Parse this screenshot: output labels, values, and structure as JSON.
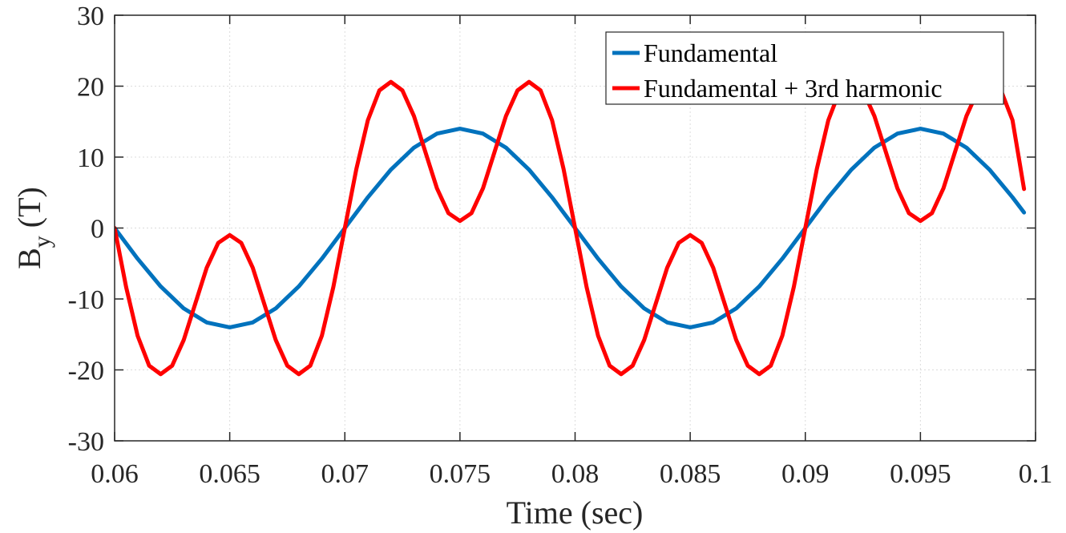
{
  "chart_data": {
    "type": "line",
    "xlabel": "Time (sec)",
    "ylabel": {
      "main": "B",
      "subscript": "y",
      "unit": "(T)"
    },
    "xlim": [
      0.06,
      0.1
    ],
    "ylim": [
      -30,
      30
    ],
    "xticks": [
      0.06,
      0.065,
      0.07,
      0.075,
      0.08,
      0.085,
      0.09,
      0.095,
      0.1
    ],
    "xtick_labels": [
      "0.06",
      "0.065",
      "0.07",
      "0.075",
      "0.08",
      "0.085",
      "0.09",
      "0.095",
      "0.1"
    ],
    "yticks": [
      -30,
      -20,
      -10,
      0,
      10,
      20,
      30
    ],
    "ytick_labels": [
      "-30",
      "-20",
      "-10",
      "0",
      "10",
      "20",
      "30"
    ],
    "grid": true,
    "legend_position": "top-right",
    "series": [
      {
        "name": "Fundamental",
        "color": "#0072BD",
        "x": [
          0.06,
          0.061,
          0.062,
          0.063,
          0.064,
          0.065,
          0.066,
          0.067,
          0.068,
          0.069,
          0.07,
          0.071,
          0.072,
          0.073,
          0.074,
          0.075,
          0.076,
          0.077,
          0.078,
          0.079,
          0.08,
          0.081,
          0.082,
          0.083,
          0.084,
          0.085,
          0.086,
          0.087,
          0.088,
          0.089,
          0.09,
          0.091,
          0.092,
          0.093,
          0.094,
          0.095,
          0.096,
          0.097,
          0.098,
          0.099,
          0.0995
        ],
        "y": [
          0,
          -4.33,
          -8.23,
          -11.33,
          -13.31,
          -14,
          -13.31,
          -11.33,
          -8.23,
          -4.33,
          0,
          4.33,
          8.23,
          11.33,
          13.31,
          14,
          13.31,
          11.33,
          8.23,
          4.33,
          0,
          -4.33,
          -8.23,
          -11.33,
          -13.31,
          -14,
          -13.31,
          -11.33,
          -8.23,
          -4.33,
          0,
          4.33,
          8.23,
          11.33,
          13.31,
          14,
          13.31,
          11.33,
          8.23,
          4.33,
          2.19
        ]
      },
      {
        "name": "Fundamental + 3rd harmonic",
        "color": "#FF0000",
        "x": [
          0.06,
          0.0605,
          0.061,
          0.0615,
          0.062,
          0.0625,
          0.063,
          0.0635,
          0.064,
          0.0645,
          0.065,
          0.0655,
          0.066,
          0.0665,
          0.067,
          0.0675,
          0.068,
          0.0685,
          0.069,
          0.0695,
          0.07,
          0.0705,
          0.071,
          0.0715,
          0.072,
          0.0725,
          0.073,
          0.0735,
          0.074,
          0.0745,
          0.075,
          0.0755,
          0.076,
          0.0765,
          0.077,
          0.0775,
          0.078,
          0.0785,
          0.079,
          0.0795,
          0.08,
          0.0805,
          0.081,
          0.0815,
          0.082,
          0.0825,
          0.083,
          0.0835,
          0.084,
          0.0845,
          0.085,
          0.0855,
          0.086,
          0.0865,
          0.087,
          0.0875,
          0.088,
          0.0885,
          0.089,
          0.0895,
          0.09,
          0.0905,
          0.091,
          0.0915,
          0.092,
          0.0925,
          0.093,
          0.0935,
          0.094,
          0.0945,
          0.095,
          0.0955,
          0.096,
          0.0965,
          0.097,
          0.0975,
          0.098,
          0.0985,
          0.099,
          0.0995
        ],
        "y": [
          0,
          -8.32,
          -15.2,
          -19.4,
          -20.6,
          -19.4,
          -15.8,
          -10.7,
          -5.6,
          -2.1,
          -1.0,
          -2.1,
          -5.6,
          -10.7,
          -15.8,
          -19.4,
          -20.6,
          -19.4,
          -15.2,
          -8.32,
          0,
          8.32,
          15.2,
          19.4,
          20.6,
          19.4,
          15.8,
          10.7,
          5.6,
          2.1,
          1.0,
          2.1,
          5.6,
          10.7,
          15.8,
          19.4,
          20.6,
          19.4,
          15.2,
          8.32,
          0,
          -8.32,
          -15.2,
          -19.4,
          -20.6,
          -19.4,
          -15.8,
          -10.7,
          -5.6,
          -2.1,
          -1.0,
          -2.1,
          -5.6,
          -10.7,
          -15.8,
          -19.4,
          -20.6,
          -19.4,
          -15.2,
          -8.32,
          0,
          8.32,
          15.2,
          19.4,
          20.6,
          19.4,
          15.8,
          10.7,
          5.6,
          2.1,
          1.0,
          2.1,
          5.6,
          10.7,
          15.8,
          19.4,
          20.6,
          19.4,
          15.2,
          5.5
        ]
      }
    ]
  }
}
